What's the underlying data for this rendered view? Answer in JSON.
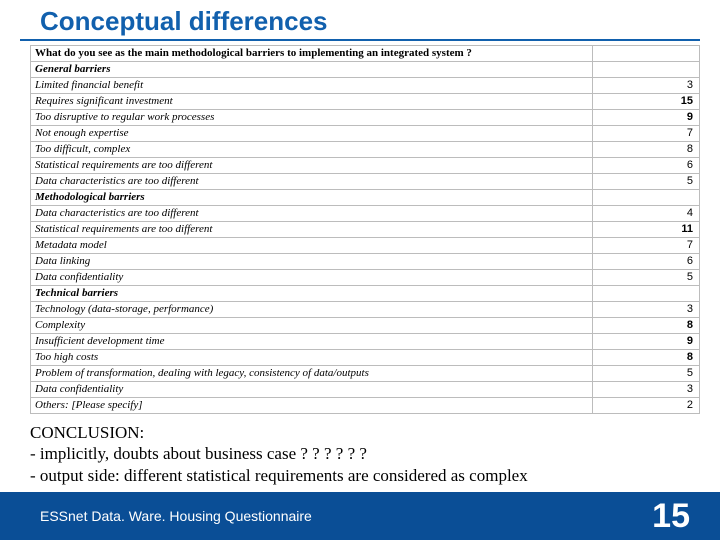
{
  "title": "Conceptual differences",
  "table": {
    "header": "What do you see as the main methodological barriers to implementing an integrated system ?",
    "rows": [
      {
        "label": "General barriers",
        "section": true,
        "value": ""
      },
      {
        "label": "Limited financial benefit",
        "value": "3"
      },
      {
        "label": "Requires significant investment",
        "value": "15",
        "bold": true
      },
      {
        "label": "Too disruptive to regular work processes",
        "value": "9",
        "bold": true
      },
      {
        "label": "Not enough expertise",
        "value": "7"
      },
      {
        "label": "Too difficult, complex",
        "value": "8"
      },
      {
        "label": "Statistical requirements are too different",
        "value": "6"
      },
      {
        "label": "Data characteristics are too different",
        "value": "5"
      },
      {
        "label": "Methodological barriers",
        "section": true,
        "value": ""
      },
      {
        "label": "Data characteristics are too different",
        "value": "4"
      },
      {
        "label": "Statistical requirements are too different",
        "value": "11",
        "bold": true
      },
      {
        "label": "Metadata model",
        "value": "7"
      },
      {
        "label": "Data linking",
        "value": "6"
      },
      {
        "label": "Data confidentiality",
        "value": "5"
      },
      {
        "label": "Technical barriers",
        "section": true,
        "value": ""
      },
      {
        "label": "Technology (data-storage, performance)",
        "value": "3"
      },
      {
        "label": "Complexity",
        "value": "8",
        "bold": true
      },
      {
        "label": "Insufficient development time",
        "value": "9",
        "bold": true
      },
      {
        "label": "Too high costs",
        "value": "8",
        "bold": true
      },
      {
        "label": "Problem of transformation, dealing with legacy,  consistency of data/outputs",
        "value": "5"
      },
      {
        "label": "Data confidentiality",
        "value": "3"
      },
      {
        "label": "Others: [Please specify]",
        "value": "2"
      }
    ]
  },
  "conclusion": {
    "heading": "CONCLUSION:",
    "bullet1": "-   implicitly, doubts about business case ? ? ? ? ? ?",
    "bullet2": "-   output side:  different statistical requirements are considered as complex"
  },
  "footer": {
    "text": "ESSnet Data. Ware. Housing Questionnaire",
    "page": "15"
  },
  "colors": {
    "title": "#1160ad",
    "footer_bg": "#0a4e96",
    "border": "#bcbcbc"
  }
}
